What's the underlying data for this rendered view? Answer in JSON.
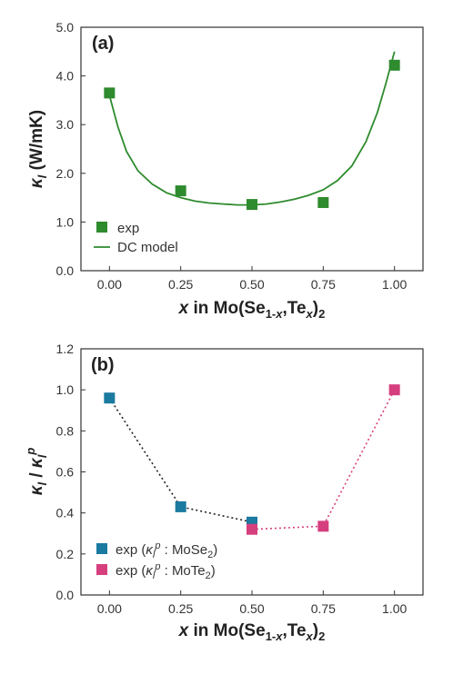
{
  "chart_data": [
    {
      "panel_label": "(a)",
      "type": "scatter",
      "ylabel": "κ_l (W/mK)",
      "xlabel": "x in Mo(Se1-x,Tex)2",
      "xlim": [
        -0.1,
        1.1
      ],
      "ylim": [
        0.0,
        5.0
      ],
      "x_ticks": [
        "0.00",
        "0.25",
        "0.50",
        "0.75",
        "1.00"
      ],
      "y_ticks": [
        "0.0",
        "1.0",
        "2.0",
        "3.0",
        "4.0",
        "5.0"
      ],
      "legend_position": "bottom-left",
      "series": [
        {
          "name": "exp",
          "marker": "square",
          "color": "#2e8b2e",
          "points": [
            {
              "x": 0.0,
              "y": 3.65
            },
            {
              "x": 0.25,
              "y": 1.64
            },
            {
              "x": 0.5,
              "y": 1.36
            },
            {
              "x": 0.75,
              "y": 1.4
            },
            {
              "x": 1.0,
              "y": 4.22
            }
          ]
        },
        {
          "name": "DC model",
          "line": "solid",
          "color": "#2e8b2e",
          "points": [
            {
              "x": 0.0,
              "y": 3.6
            },
            {
              "x": 0.03,
              "y": 2.95
            },
            {
              "x": 0.06,
              "y": 2.45
            },
            {
              "x": 0.1,
              "y": 2.05
            },
            {
              "x": 0.15,
              "y": 1.78
            },
            {
              "x": 0.2,
              "y": 1.6
            },
            {
              "x": 0.25,
              "y": 1.5
            },
            {
              "x": 0.3,
              "y": 1.43
            },
            {
              "x": 0.35,
              "y": 1.39
            },
            {
              "x": 0.4,
              "y": 1.37
            },
            {
              "x": 0.45,
              "y": 1.35
            },
            {
              "x": 0.5,
              "y": 1.35
            },
            {
              "x": 0.55,
              "y": 1.37
            },
            {
              "x": 0.6,
              "y": 1.41
            },
            {
              "x": 0.65,
              "y": 1.47
            },
            {
              "x": 0.7,
              "y": 1.55
            },
            {
              "x": 0.75,
              "y": 1.66
            },
            {
              "x": 0.8,
              "y": 1.85
            },
            {
              "x": 0.85,
              "y": 2.15
            },
            {
              "x": 0.9,
              "y": 2.65
            },
            {
              "x": 0.94,
              "y": 3.25
            },
            {
              "x": 0.97,
              "y": 3.85
            },
            {
              "x": 1.0,
              "y": 4.5
            }
          ]
        }
      ]
    },
    {
      "panel_label": "(b)",
      "type": "scatter",
      "ylabel": "κ_l / κ_l^p",
      "xlabel": "x in Mo(Se1-x,Tex)2",
      "xlim": [
        -0.1,
        1.1
      ],
      "ylim": [
        0.0,
        1.2
      ],
      "x_ticks": [
        "0.00",
        "0.25",
        "0.50",
        "0.75",
        "1.00"
      ],
      "y_ticks": [
        "0.0",
        "0.2",
        "0.4",
        "0.6",
        "0.8",
        "1.0",
        "1.2"
      ],
      "legend_position": "bottom-left",
      "series": [
        {
          "name": "exp (κ_l^p : MoSe2)",
          "marker": "square",
          "line": "dotted",
          "color": "#1a7aa0",
          "line_color": "#222222",
          "points": [
            {
              "x": 0.0,
              "y": 0.96
            },
            {
              "x": 0.25,
              "y": 0.43
            },
            {
              "x": 0.5,
              "y": 0.355
            }
          ]
        },
        {
          "name": "exp (κ_l^p : MoTe2)",
          "marker": "square",
          "line": "dotted",
          "color": "#d63f7e",
          "line_color": "#d63f7e",
          "points": [
            {
              "x": 0.5,
              "y": 0.32
            },
            {
              "x": 0.75,
              "y": 0.335
            },
            {
              "x": 1.0,
              "y": 1.0
            }
          ]
        }
      ]
    }
  ]
}
